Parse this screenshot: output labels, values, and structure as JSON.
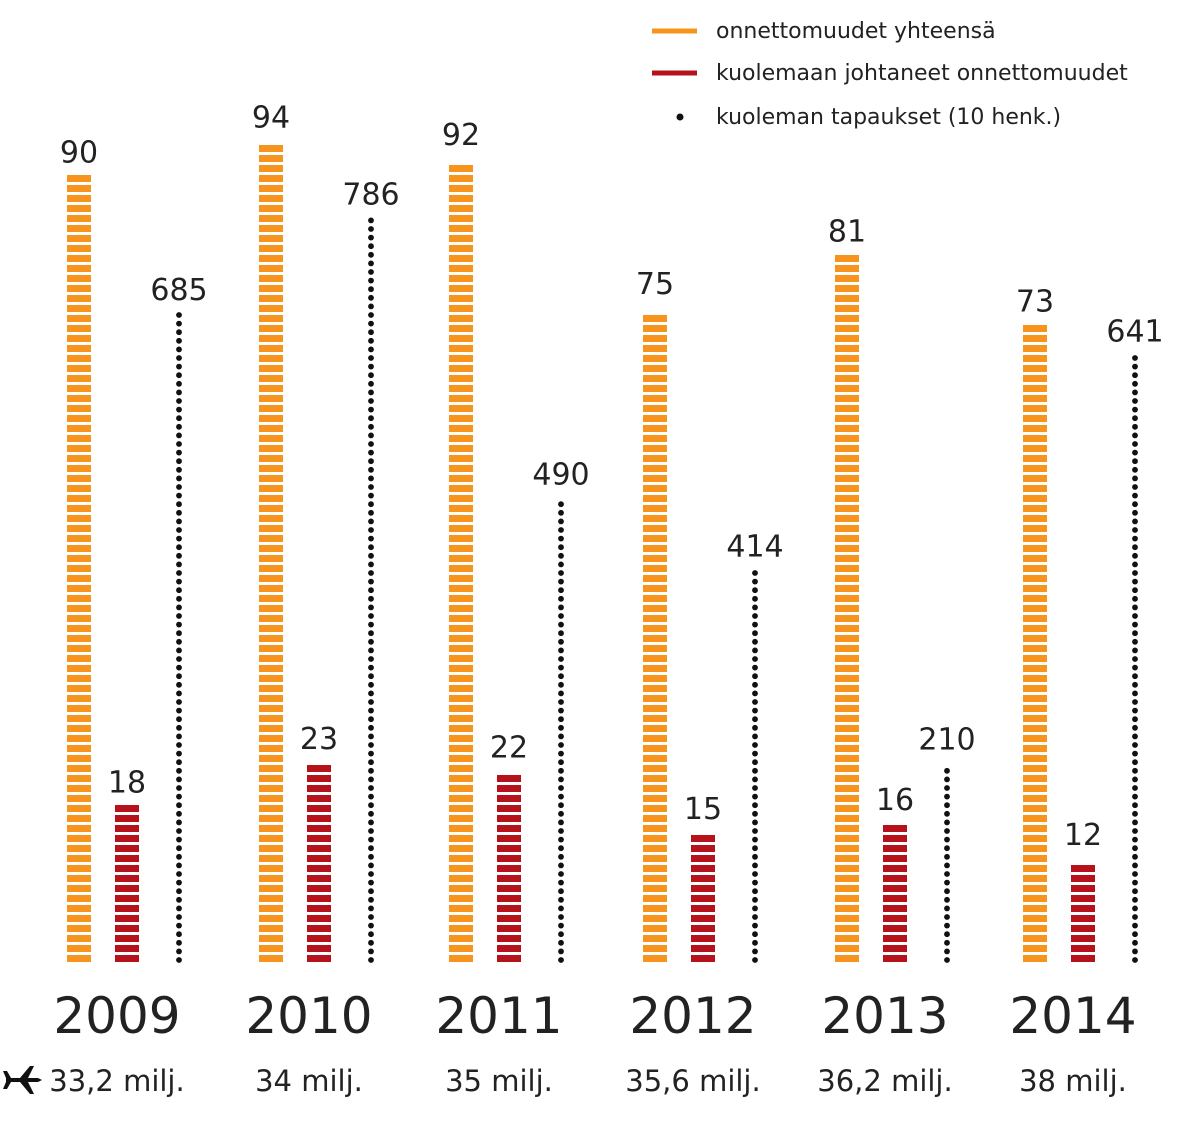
{
  "chart_data": {
    "type": "bar",
    "categories": [
      "2009",
      "2010",
      "2011",
      "2012",
      "2013",
      "2014"
    ],
    "flights_label": [
      "33,2 milj.",
      "34 milj.",
      "35 milj.",
      "35,6 milj.",
      "36,2 milj.",
      "38 milj."
    ],
    "series": [
      {
        "name": "onnettomuudet yhteensä",
        "values": [
          90,
          94,
          92,
          75,
          81,
          73
        ],
        "color": "#f7941d",
        "style": "dashed-bar"
      },
      {
        "name": "kuolemaan johtaneet onnettomuudet",
        "values": [
          18,
          23,
          22,
          15,
          16,
          12
        ],
        "color": "#b5121b",
        "style": "dashed-bar"
      },
      {
        "name": "kuoleman tapaukset (10 henk.)",
        "values": [
          685,
          786,
          490,
          414,
          210,
          641
        ],
        "color": "#111111",
        "style": "dots"
      }
    ],
    "legend_position": "top-right",
    "plane_icon": "airplane-icon"
  }
}
